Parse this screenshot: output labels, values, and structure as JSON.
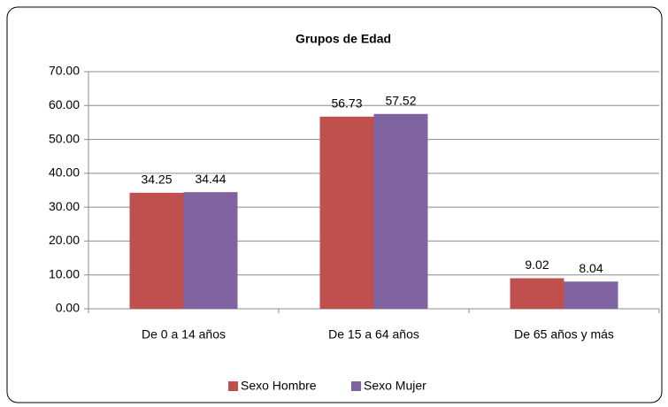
{
  "chart_data": {
    "type": "bar",
    "title": "Grupos de Edad",
    "categories": [
      "De 0 a 14 años",
      "De 15 a 64 años",
      "De 65 años y más"
    ],
    "series": [
      {
        "name": "Sexo Hombre",
        "color": "#c0504d",
        "values": [
          34.25,
          56.73,
          9.02
        ]
      },
      {
        "name": "Sexo Mujer",
        "color": "#8064a2",
        "values": [
          34.44,
          57.52,
          8.04
        ]
      }
    ],
    "ylim": [
      0,
      70
    ],
    "yticks": [
      {
        "value": 0,
        "label": "0.00"
      },
      {
        "value": 10,
        "label": "10.00"
      },
      {
        "value": 20,
        "label": "20.00"
      },
      {
        "value": 30,
        "label": "30.00"
      },
      {
        "value": 40,
        "label": "40.00"
      },
      {
        "value": 50,
        "label": "50.00"
      },
      {
        "value": 60,
        "label": "60.00"
      },
      {
        "value": 70,
        "label": "70.00"
      }
    ],
    "grid": true,
    "legend": "bottom"
  }
}
